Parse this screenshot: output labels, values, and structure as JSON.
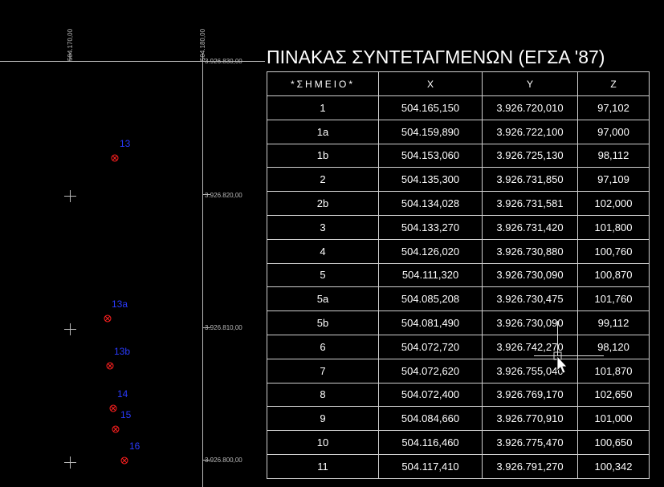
{
  "title": "ΠΙΝΑΚΑΣ ΣΥΝΤΕΤΑΓΜΕΝΩΝ (ΕΓΣΑ '87)",
  "table": {
    "headers": [
      "*ΣΗΜΕΙΟ*",
      "X",
      "Y",
      "Z"
    ],
    "rows": [
      [
        "1",
        "504.165,150",
        "3.926.720,010",
        "97,102"
      ],
      [
        "1a",
        "504.159,890",
        "3.926.722,100",
        "97,000"
      ],
      [
        "1b",
        "504.153,060",
        "3.926.725,130",
        "98,112"
      ],
      [
        "2",
        "504.135,300",
        "3.926.731,850",
        "97,109"
      ],
      [
        "2b",
        "504.134,028",
        "3.926.731,581",
        "102,000"
      ],
      [
        "3",
        "504.133,270",
        "3.926.731,420",
        "101,800"
      ],
      [
        "4",
        "504.126,020",
        "3.926.730,880",
        "100,760"
      ],
      [
        "5",
        "504.111,320",
        "3.926.730,090",
        "100,870"
      ],
      [
        "5a",
        "504.085,208",
        "3.926.730,475",
        "101,760"
      ],
      [
        "5b",
        "504.081,490",
        "3.926.730,090",
        "99,112"
      ],
      [
        "6",
        "504.072,720",
        "3.926.742,270",
        "98,120"
      ],
      [
        "7",
        "504.072,620",
        "3.926.755,040",
        "101,870"
      ],
      [
        "8",
        "504.072,400",
        "3.926.769,170",
        "102,650"
      ],
      [
        "9",
        "504.084,660",
        "3.926.770,910",
        "101,000"
      ],
      [
        "10",
        "504.116,460",
        "3.926.775,470",
        "100,650"
      ],
      [
        "11",
        "504.117,410",
        "3.926.791,270",
        "100,342"
      ]
    ]
  },
  "grid": {
    "x_labels": [
      "504.170,00",
      "504.180,00"
    ],
    "y_labels": [
      "3.926.830,00",
      "3.926.820,00",
      "3.926.810,00",
      "3.926.800,00"
    ]
  },
  "points": [
    {
      "label": "13"
    },
    {
      "label": "13a"
    },
    {
      "label": "13b"
    },
    {
      "label": "14"
    },
    {
      "label": "15"
    },
    {
      "label": "16"
    }
  ],
  "colors": {
    "background": "#000000",
    "point_marker": "#ff2020",
    "point_label": "#2a3bff",
    "grid_line": "#bbbbbb"
  },
  "cursor_icon": "arrow-cursor-icon"
}
